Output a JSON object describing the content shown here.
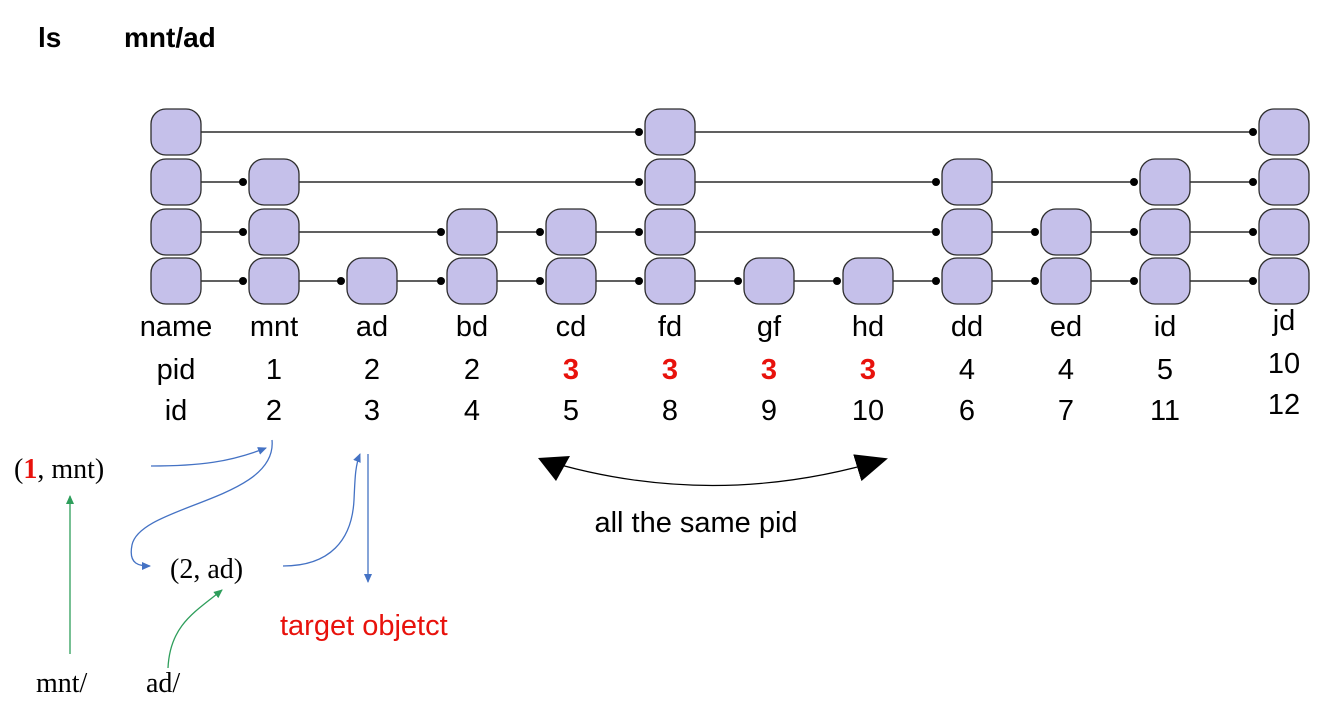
{
  "command": {
    "name": "ls",
    "argument": "mnt/ad"
  },
  "row_labels": {
    "name": "name",
    "pid": "pid",
    "id": "id"
  },
  "columns": [
    {
      "name": "mnt",
      "pid": "1",
      "id": "2",
      "levels": 3,
      "highlight_pid": false
    },
    {
      "name": "ad",
      "pid": "2",
      "id": "3",
      "levels": 1,
      "highlight_pid": false
    },
    {
      "name": "bd",
      "pid": "2",
      "id": "4",
      "levels": 2,
      "highlight_pid": false
    },
    {
      "name": "cd",
      "pid": "3",
      "id": "5",
      "levels": 2,
      "highlight_pid": true
    },
    {
      "name": "fd",
      "pid": "3",
      "id": "8",
      "levels": 4,
      "highlight_pid": true
    },
    {
      "name": "gf",
      "pid": "3",
      "id": "9",
      "levels": 1,
      "highlight_pid": true
    },
    {
      "name": "hd",
      "pid": "3",
      "id": "10",
      "levels": 1,
      "highlight_pid": true
    },
    {
      "name": "dd",
      "pid": "4",
      "id": "6",
      "levels": 3,
      "highlight_pid": false
    },
    {
      "name": "ed",
      "pid": "4",
      "id": "7",
      "levels": 2,
      "highlight_pid": false
    },
    {
      "name": "id",
      "pid": "5",
      "id": "11",
      "levels": 3,
      "highlight_pid": false
    },
    {
      "name": "jd",
      "pid": "10",
      "id": "12",
      "levels": 4,
      "highlight_pid": false
    }
  ],
  "head_levels": 4,
  "same_pid_note": "all the same pid",
  "lookup": {
    "first_key": {
      "open": "(",
      "pid": "1",
      "rest": ", mnt)"
    },
    "second_key": "(2, ad)",
    "target": "target objetct",
    "path_parts": [
      "mnt/",
      "ad/"
    ]
  },
  "colors": {
    "node_fill": "#c5c0ea",
    "highlight": "#e8120c",
    "lookup_arrow": "#4472c4",
    "path_arrow": "#2e9e5b"
  }
}
